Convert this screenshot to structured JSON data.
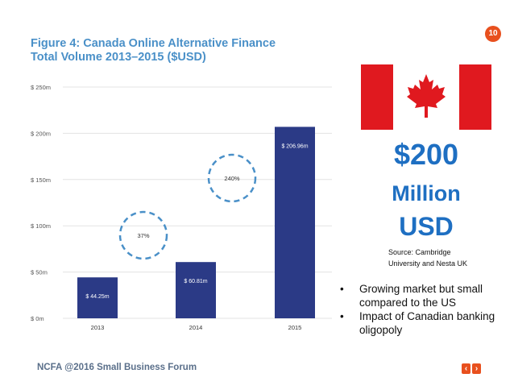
{
  "page_number": "10",
  "figure": {
    "title_line1": "Figure 4: Canada Online Alternative Finance",
    "title_line2": "Total Volume 2013–2015 ($USD)"
  },
  "chart_data": {
    "type": "bar",
    "title": "Figure 4: Canada Online Alternative Finance Total Volume 2013–2015 ($USD)",
    "categories": [
      "2013",
      "2014",
      "2015"
    ],
    "values": [
      44.25,
      60.81,
      206.96
    ],
    "value_labels": [
      "$ 44.25m",
      "$ 60.81m",
      "$ 206.96m"
    ],
    "y_ticks": [
      0,
      50,
      100,
      150,
      200,
      250
    ],
    "y_tick_labels": [
      "$ 0m",
      "$ 50m",
      "$ 100m",
      "$ 150m",
      "$ 200m",
      "$ 250m"
    ],
    "ylim": [
      0,
      250
    ],
    "grid": true,
    "growth_annotations": [
      {
        "text": "37%",
        "between": [
          "2013",
          "2014"
        ]
      },
      {
        "text": "240%",
        "between": [
          "2014",
          "2015"
        ]
      }
    ],
    "colors": {
      "bar": "#2b3a86",
      "grid": "#e3e3e3",
      "circle": "#4a90c8",
      "axis_text": "#555555"
    }
  },
  "highlight": {
    "amount": "$200",
    "unit": "Million",
    "currency": "USD",
    "source_line1": "Source:  Cambridge",
    "source_line2": "University and Nesta UK"
  },
  "bullets": [
    "Growing market but small compared to the US",
    "Impact of Canadian banking oligopoly"
  ],
  "footer": "NCFA @2016 Small Business Forum",
  "nav": {
    "prev": "‹",
    "next": "›"
  },
  "colors": {
    "accent": "#e8501e",
    "highlight_text": "#1e6fc2",
    "flag_red": "#e0191f",
    "title": "#4a90c8"
  }
}
